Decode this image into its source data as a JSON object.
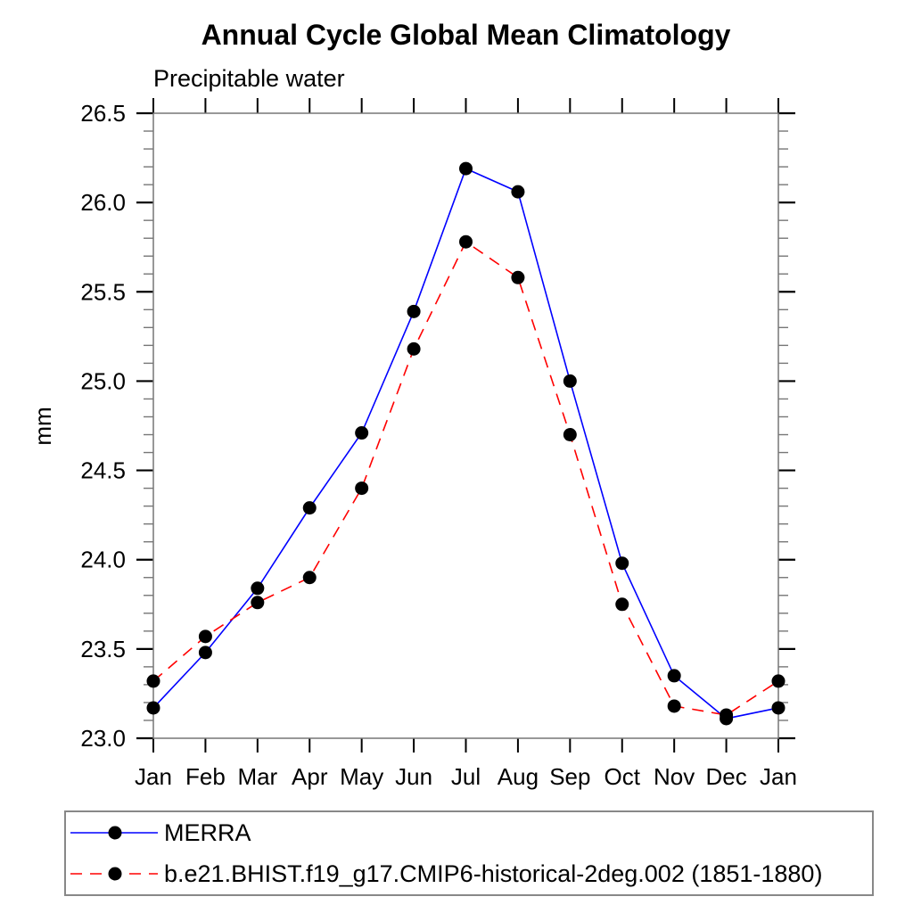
{
  "page": {
    "background": "#ffffff"
  },
  "title": "Annual Cycle Global Mean Climatology",
  "subtitle": "Precipitable water",
  "y_axis": {
    "label": "mm",
    "min": 23.0,
    "max": 26.5,
    "major_step": 0.5,
    "minor_step": 0.1,
    "tick_labels": [
      "23.0",
      "23.5",
      "24.0",
      "24.5",
      "25.0",
      "25.5",
      "26.0",
      "26.5"
    ]
  },
  "x_axis": {
    "tick_labels": [
      "Jan",
      "Feb",
      "Mar",
      "Apr",
      "May",
      "Jun",
      "Jul",
      "Aug",
      "Sep",
      "Oct",
      "Nov",
      "Dec",
      "Jan"
    ]
  },
  "colors": {
    "merra_line": "#0000ff",
    "model_line": "#ff0000",
    "marker": "#000000",
    "frame": "#777777",
    "major_tick": "#000000",
    "legend_border": "#888888"
  },
  "chart_data": {
    "type": "line",
    "title": "Annual Cycle Global Mean Climatology",
    "subtitle": "Precipitable water",
    "xlabel": "",
    "ylabel": "mm",
    "ylim": [
      23.0,
      26.5
    ],
    "grid": false,
    "legend_position": "bottom",
    "x": [
      "Jan",
      "Feb",
      "Mar",
      "Apr",
      "May",
      "Jun",
      "Jul",
      "Aug",
      "Sep",
      "Oct",
      "Nov",
      "Dec",
      "Jan"
    ],
    "series": [
      {
        "name": "MERRA",
        "color": "#0000ff",
        "line_style": "solid",
        "marker": "filled-circle",
        "marker_color": "#000000",
        "values": [
          23.17,
          23.48,
          23.84,
          24.29,
          24.71,
          25.39,
          26.19,
          26.06,
          25.0,
          23.98,
          23.35,
          23.11,
          23.17
        ]
      },
      {
        "name": "b.e21.BHIST.f19_g17.CMIP6-historical-2deg.002 (1851-1880)",
        "color": "#ff0000",
        "line_style": "dashed",
        "marker": "filled-circle",
        "marker_color": "#000000",
        "values": [
          23.32,
          23.57,
          23.76,
          23.9,
          24.4,
          25.18,
          25.78,
          25.58,
          24.7,
          23.75,
          23.18,
          23.13,
          23.32
        ]
      }
    ]
  }
}
